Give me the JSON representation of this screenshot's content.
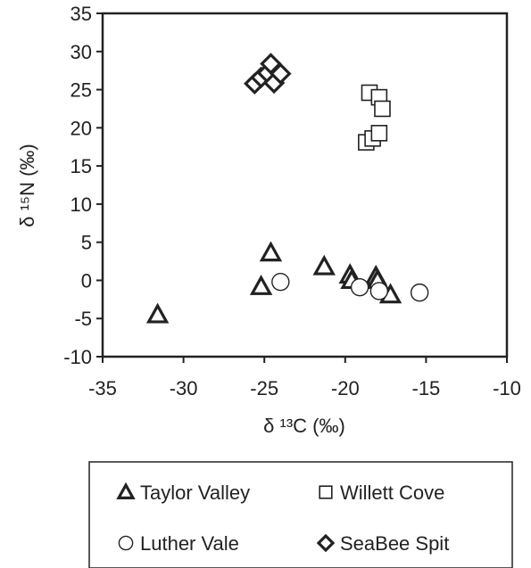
{
  "chart_data": {
    "type": "scatter",
    "xlabel": "δ ¹³C (‰)",
    "ylabel": "δ ¹⁵N (‰)",
    "xlim": [
      -35,
      -10
    ],
    "ylim": [
      -10,
      35
    ],
    "xticks": [
      -35,
      -30,
      -25,
      -20,
      -15,
      -10
    ],
    "yticks": [
      -10,
      -5,
      0,
      5,
      10,
      15,
      20,
      25,
      30,
      35
    ],
    "grid": false,
    "legend_position": "bottom",
    "series": [
      {
        "name": "Taylor Valley",
        "marker": "triangle",
        "points": [
          {
            "x": -31.6,
            "y": -4.5
          },
          {
            "x": -25.2,
            "y": -0.8
          },
          {
            "x": -24.6,
            "y": 3.6
          },
          {
            "x": -21.3,
            "y": 1.8
          },
          {
            "x": -19.7,
            "y": 0.7
          },
          {
            "x": -19.6,
            "y": 0.0
          },
          {
            "x": -18.1,
            "y": 0.5
          },
          {
            "x": -18.0,
            "y": 0.0
          },
          {
            "x": -17.2,
            "y": -1.9
          }
        ]
      },
      {
        "name": "Willett Cove",
        "marker": "square",
        "points": [
          {
            "x": -18.5,
            "y": 24.6
          },
          {
            "x": -17.9,
            "y": 24.0
          },
          {
            "x": -17.7,
            "y": 22.5
          },
          {
            "x": -18.7,
            "y": 18.1
          },
          {
            "x": -18.3,
            "y": 18.6
          },
          {
            "x": -17.9,
            "y": 19.3
          }
        ]
      },
      {
        "name": "Luther Vale",
        "marker": "circle",
        "points": [
          {
            "x": -24.0,
            "y": -0.2
          },
          {
            "x": -19.1,
            "y": -0.9
          },
          {
            "x": -17.9,
            "y": -1.4
          },
          {
            "x": -15.4,
            "y": -1.6
          }
        ]
      },
      {
        "name": "SeaBee Spit",
        "marker": "diamond",
        "points": [
          {
            "x": -25.6,
            "y": 25.8
          },
          {
            "x": -25.2,
            "y": 26.6
          },
          {
            "x": -24.8,
            "y": 27.2
          },
          {
            "x": -24.6,
            "y": 28.4
          },
          {
            "x": -24.4,
            "y": 25.9
          },
          {
            "x": -24.0,
            "y": 27.1
          }
        ]
      }
    ],
    "colors": {
      "marker_stroke": "#222222",
      "marker_fill": "#ffffff",
      "axis": "#222222"
    }
  },
  "legend": {
    "items": [
      {
        "label": "Taylor Valley",
        "marker": "triangle"
      },
      {
        "label": "Willett Cove",
        "marker": "square"
      },
      {
        "label": "Luther Vale",
        "marker": "circle"
      },
      {
        "label": "SeaBee Spit",
        "marker": "diamond"
      }
    ]
  }
}
